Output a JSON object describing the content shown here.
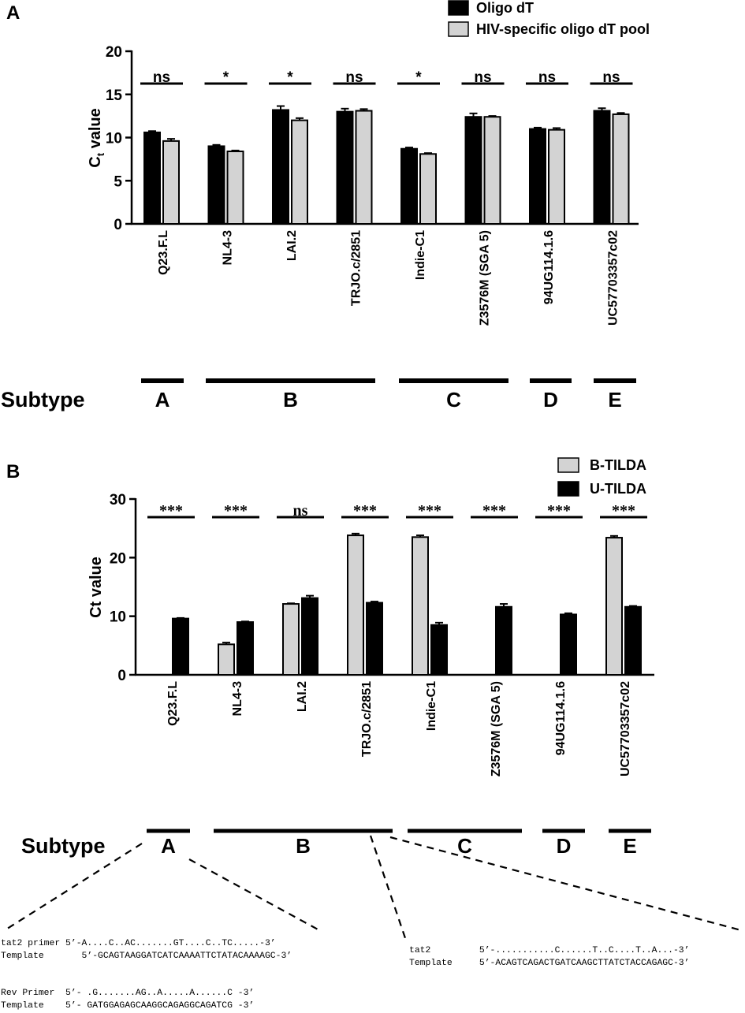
{
  "panels": [
    {
      "letter": "A",
      "ylabel": "C",
      "ylabel_sub": "t",
      "ylabel_rest": " value",
      "subtype_label": "Subtype",
      "legend": [
        "Oligo dT",
        "HIV-specific oligo dT pool"
      ],
      "significance": [
        "ns",
        "*",
        "*",
        "ns",
        "*",
        "ns",
        "ns",
        "ns"
      ],
      "subtypes": [
        "A",
        "B",
        "C",
        "D",
        "E"
      ]
    },
    {
      "letter": "B",
      "ylabel": "Ct value",
      "subtype_label": "Subtype",
      "legend": [
        "B-TILDA",
        "U-TILDA"
      ],
      "significance": [
        "***",
        "***",
        "ns",
        "***",
        "***",
        "***",
        "***",
        "***"
      ],
      "subtypes": [
        "A",
        "B",
        "C",
        "D",
        "E"
      ]
    }
  ],
  "chart_data": [
    {
      "type": "bar",
      "categories": [
        "Q23.F.L",
        "NL4-3",
        "LAI.2",
        "TRJO.c/2851",
        "Indie-C1",
        "Z3576M (SGA 5)",
        "94UG114.1.6",
        "UC57703357c02"
      ],
      "series": [
        {
          "name": "Oligo dT",
          "values": [
            10.6,
            9.0,
            13.2,
            13.0,
            8.7,
            12.4,
            11.0,
            13.1
          ],
          "error": [
            0.15,
            0.15,
            0.45,
            0.35,
            0.15,
            0.4,
            0.15,
            0.3
          ],
          "color": "#000000"
        },
        {
          "name": "HIV-specific oligo dT pool",
          "values": [
            9.6,
            8.4,
            12.0,
            13.1,
            8.1,
            12.4,
            10.9,
            12.7
          ],
          "error": [
            0.25,
            0.1,
            0.25,
            0.2,
            0.1,
            0.1,
            0.2,
            0.15
          ],
          "color": "#d3d3d3"
        }
      ],
      "ylabel": "Ct value",
      "ylim": [
        0,
        20
      ],
      "yticks": [
        0,
        5,
        10,
        15,
        20
      ],
      "legend_position": "top-right",
      "subtype_groups": [
        {
          "label": "A",
          "categories": [
            "Q23.F.L"
          ]
        },
        {
          "label": "B",
          "categories": [
            "NL4-3",
            "LAI.2",
            "TRJO.c/2851"
          ]
        },
        {
          "label": "C",
          "categories": [
            "Indie-C1",
            "Z3576M (SGA 5)"
          ]
        },
        {
          "label": "D",
          "categories": [
            "94UG114.1.6"
          ]
        },
        {
          "label": "E",
          "categories": [
            "UC57703357c02"
          ]
        }
      ]
    },
    {
      "type": "bar",
      "categories": [
        "Q23.F.L",
        "NL4-3",
        "LAI.2",
        "TRJO.c/2851",
        "Indie-C1",
        "Z3576M (SGA 5)",
        "94UG114.1.6",
        "UC57703357c02"
      ],
      "series": [
        {
          "name": "B-TILDA",
          "values": [
            0,
            5.2,
            12.1,
            23.8,
            23.5,
            0,
            0,
            23.4
          ],
          "error": [
            0,
            0.3,
            0.1,
            0.3,
            0.3,
            0,
            0,
            0.3
          ],
          "color": "#d3d3d3"
        },
        {
          "name": "U-TILDA",
          "values": [
            9.6,
            9.0,
            13.1,
            12.3,
            8.5,
            11.6,
            10.3,
            11.6
          ],
          "error": [
            0.1,
            0.1,
            0.4,
            0.2,
            0.4,
            0.5,
            0.2,
            0.15
          ],
          "color": "#000000"
        }
      ],
      "ylabel": "Ct value",
      "ylim": [
        0,
        30
      ],
      "yticks": [
        0,
        10,
        20,
        30
      ],
      "legend_position": "top-right",
      "subtype_groups": [
        {
          "label": "A",
          "categories": [
            "Q23.F.L"
          ]
        },
        {
          "label": "B",
          "categories": [
            "NL4-3",
            "LAI.2",
            "TRJO.c/2851"
          ]
        },
        {
          "label": "C",
          "categories": [
            "Indie-C1",
            "Z3576M (SGA 5)"
          ]
        },
        {
          "label": "D",
          "categories": [
            "94UG114.1.6"
          ]
        },
        {
          "label": "E",
          "categories": [
            "UC57703357c02"
          ]
        }
      ]
    }
  ],
  "sequences": {
    "subtype_a": [
      {
        "label": "tat2 primer",
        "seq": "5’-A....C..AC.......GT....C..TC.....-3’"
      },
      {
        "label": "Template",
        "seq": "5’-GCAGTAAGGATCATCAAAATTCTATACAAAAGC-3’"
      }
    ],
    "subtype_a_rev": [
      {
        "label": "Rev Primer",
        "seq": "5’- .G.......AG..A.....A......C -3’"
      },
      {
        "label": "Template",
        "seq": "5’- GATGGAGAGCAAGGCAGAGGCAGATCG -3’"
      }
    ],
    "subtype_b": [
      {
        "label": "tat2",
        "seq": "5’-...........C......T..C....T..A...-3’"
      },
      {
        "label": "Template",
        "seq": "5’-ACAGTCAGACTGATCAAGCTTATCTACCAGAGC-3’"
      }
    ]
  }
}
